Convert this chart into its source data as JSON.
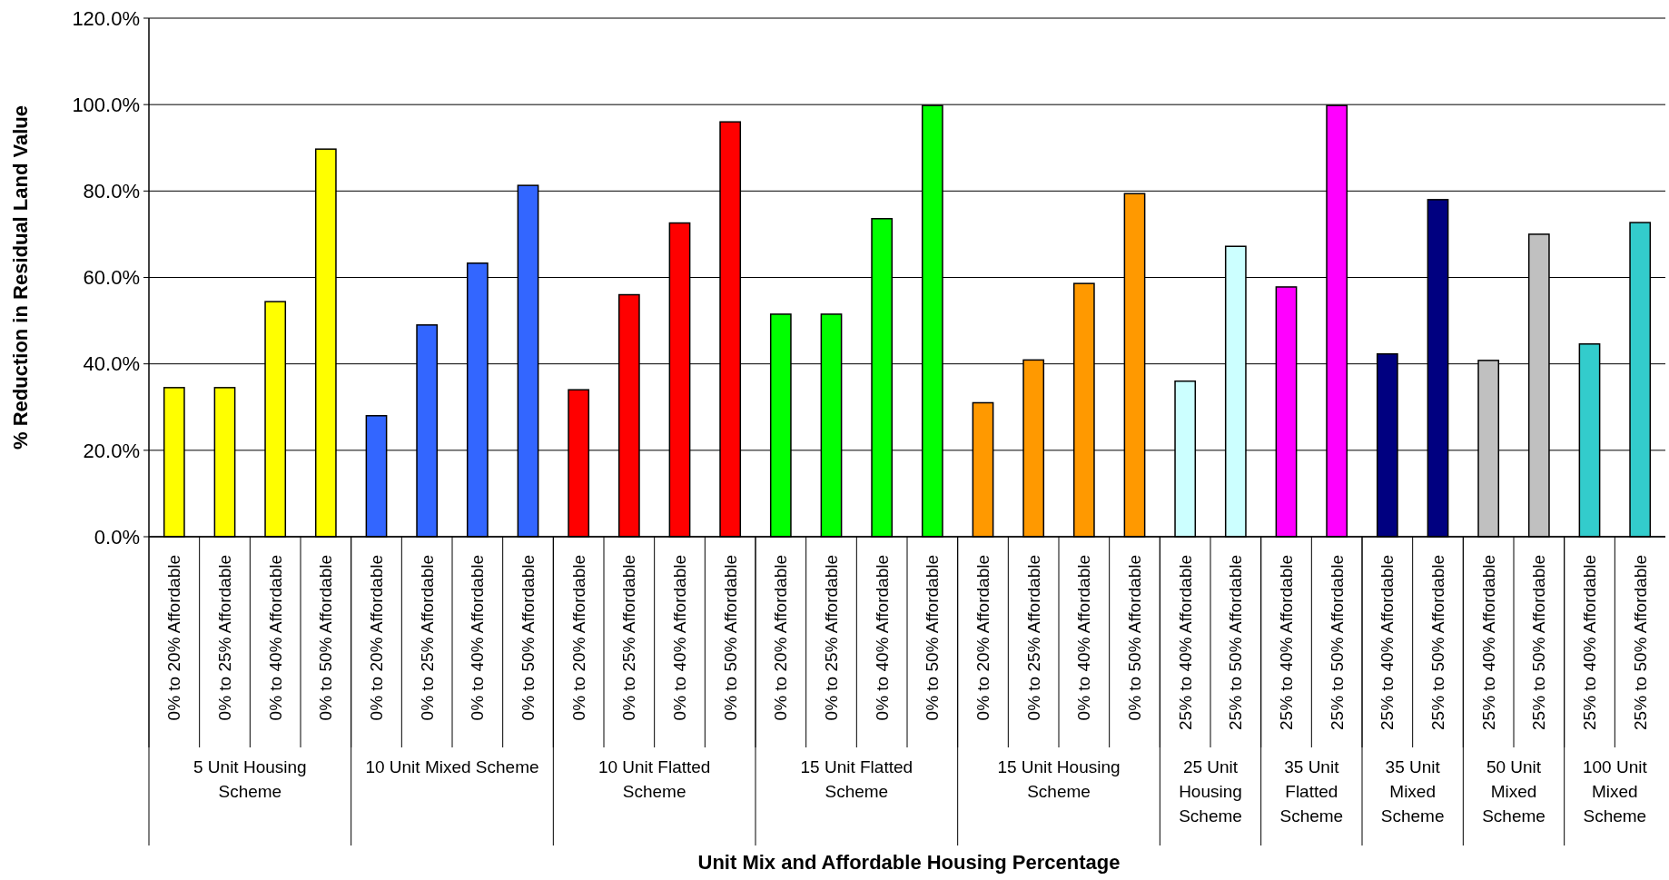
{
  "chart_data": {
    "type": "bar",
    "ylabel": "% Reduction in Residual Land Value",
    "categories": [
      "0% to 20% Affordable",
      "0% to 25% Affordable",
      "0% to 40% Affordable",
      "0% to 50% Affordable",
      "0% to 20% Affordable",
      "0% to 25% Affordable",
      "0% to 40% Affordable",
      "0% to 50% Affordable",
      "0% to 20% Affordable",
      "0% to 25% Affordable",
      "0% to 40% Affordable",
      "0% to 50% Affordable",
      "0% to 20% Affordable",
      "0% to 25% Affordable",
      "0% to 40% Affordable",
      "0% to 50% Affordable",
      "0% to 20% Affordable",
      "0% to 25% Affordable",
      "0% to 40% Affordable",
      "0% to 50% Affordable",
      "25% to 40% Affordable",
      "25% to 50% Affordable",
      "25% to 40% Affordable",
      "25% to 50% Affordable",
      "25% to 40% Affordable",
      "25% to 50% Affordable",
      "25% to 40% Affordable",
      "25% to 50% Affordable",
      "25% to 40% Affordable",
      "25% to 50% Affordable"
    ],
    "values": [
      34.5,
      34.5,
      54.4,
      89.7,
      28,
      49,
      63.3,
      81.3,
      34,
      56,
      72.6,
      96,
      51.5,
      51.5,
      73.6,
      99.8,
      31,
      40.9,
      58.6,
      79.4,
      36,
      67.2,
      57.8,
      99.8,
      42.3,
      78,
      40.8,
      70,
      44.6,
      72.7
    ],
    "colors": [
      "#ffff00",
      "#ffff00",
      "#ffff00",
      "#ffff00",
      "#3366ff",
      "#3366ff",
      "#3366ff",
      "#3366ff",
      "#ff0000",
      "#ff0000",
      "#ff0000",
      "#ff0000",
      "#00ff00",
      "#00ff00",
      "#00ff00",
      "#00ff00",
      "#ff9900",
      "#ff9900",
      "#ff9900",
      "#ff9900",
      "#ccffff",
      "#ccffff",
      "#ff00ff",
      "#ff00ff",
      "#000080",
      "#000080",
      "#c0c0c0",
      "#c0c0c0",
      "#33cccc",
      "#33cccc"
    ],
    "annotations": [
      "5 Unit Housing Scheme",
      "10 Unit Mixed Scheme",
      "10 Unit Flatted Scheme",
      "15 Unit Flatted Scheme",
      "15 Unit Housing Scheme",
      "25 Unit Housing Scheme",
      "35 Unit Flatted Scheme",
      "35 Unit Mixed Scheme",
      "50 Unit Mixed Scheme",
      "100 Unit Mixed Scheme",
      "Unit Mix and Affordable Housing Percentage"
    ],
    "ylim": [
      0,
      120
    ],
    "yticks": [
      {
        "value": 0,
        "label": "0.0%"
      },
      {
        "value": 20,
        "label": "20.0%"
      },
      {
        "value": 40,
        "label": "40.0%"
      },
      {
        "value": 60,
        "label": "60.0%"
      },
      {
        "value": 80,
        "label": "80.0%"
      },
      {
        "value": 100,
        "label": "100.0%"
      },
      {
        "value": 120,
        "label": "120.0%"
      }
    ],
    "grid": "y",
    "legend": false
  }
}
